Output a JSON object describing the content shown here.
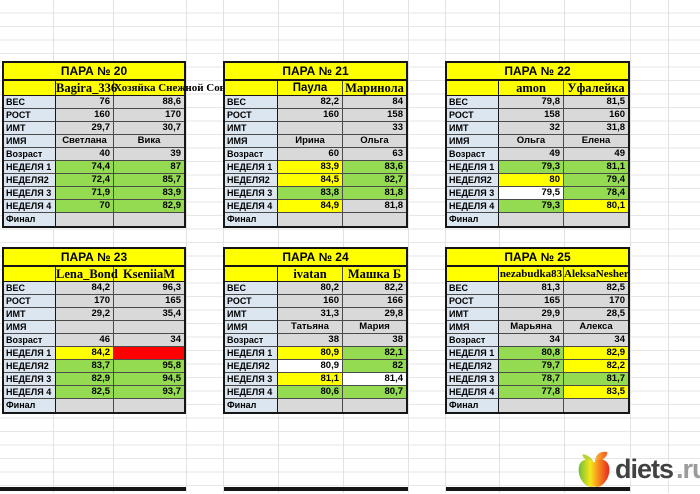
{
  "colors": {
    "yellow": "#FFFF00",
    "green": "#94DB52",
    "red": "#FF0000",
    "gray": "#D9D9D9",
    "label_blue": "#DCE6F1",
    "white": "#FFFFFF"
  },
  "row_labels": [
    "ВЕС",
    "РОСТ",
    "ИМТ",
    "ИМЯ",
    "Возраст",
    "НЕДЕЛЯ 1",
    "НЕДЕЛЯ2",
    "НЕДЕЛЯ 3",
    "НЕДЕЛЯ 4",
    "Финал"
  ],
  "tables": [
    {
      "title": "ПАРА № 20",
      "names": [
        {
          "text": "Bagira_336"
        },
        {
          "text": "Хозяйка Снежной Совы"
        }
      ],
      "rows": [
        {
          "cells": [
            "76",
            "88,6"
          ],
          "fills": [
            "gray",
            "gray"
          ]
        },
        {
          "cells": [
            "160",
            "170"
          ],
          "fills": [
            "gray",
            "gray"
          ]
        },
        {
          "cells": [
            "29,7",
            "30,7"
          ],
          "fills": [
            "gray",
            "gray"
          ]
        },
        {
          "cells": [
            "Светлана",
            "Вика"
          ],
          "fills": [
            "gray",
            "gray"
          ]
        },
        {
          "cells": [
            "40",
            "39"
          ],
          "fills": [
            "gray",
            "gray"
          ]
        },
        {
          "cells": [
            "74,4",
            "87"
          ],
          "fills": [
            "green",
            "green"
          ]
        },
        {
          "cells": [
            "72,4",
            "85,7"
          ],
          "fills": [
            "green",
            "green"
          ]
        },
        {
          "cells": [
            "71,9",
            "83,9"
          ],
          "fills": [
            "green",
            "green"
          ]
        },
        {
          "cells": [
            "70",
            "82,9"
          ],
          "fills": [
            "green",
            "green"
          ]
        },
        {
          "cells": [
            "",
            ""
          ],
          "fills": [
            "gray",
            "gray"
          ]
        }
      ]
    },
    {
      "title": "ПАРА № 21",
      "names": [
        {
          "text": "Паула"
        },
        {
          "text": "Маринола"
        }
      ],
      "rows": [
        {
          "cells": [
            "82,2",
            "84"
          ],
          "fills": [
            "gray",
            "gray"
          ]
        },
        {
          "cells": [
            "160",
            "158"
          ],
          "fills": [
            "gray",
            "gray"
          ]
        },
        {
          "cells": [
            "",
            "33"
          ],
          "fills": [
            "gray",
            "gray"
          ]
        },
        {
          "cells": [
            "Ирина",
            "Ольга"
          ],
          "fills": [
            "gray",
            "gray"
          ]
        },
        {
          "cells": [
            "60",
            "63"
          ],
          "fills": [
            "gray",
            "gray"
          ]
        },
        {
          "cells": [
            "83,9",
            "83,6"
          ],
          "fills": [
            "yellow",
            "green"
          ]
        },
        {
          "cells": [
            "84,5",
            "82,7"
          ],
          "fills": [
            "yellow",
            "green"
          ]
        },
        {
          "cells": [
            "83,8",
            "81,8"
          ],
          "fills": [
            "green",
            "green"
          ]
        },
        {
          "cells": [
            "84,9",
            "81,8"
          ],
          "fills": [
            "yellow",
            "gray"
          ]
        },
        {
          "cells": [
            "",
            ""
          ],
          "fills": [
            "gray",
            "gray"
          ]
        }
      ]
    },
    {
      "title": "ПАРА № 22",
      "names": [
        {
          "text": "amon"
        },
        {
          "text": "Уфалейка"
        }
      ],
      "rows": [
        {
          "cells": [
            "79,8",
            "81,5"
          ],
          "fills": [
            "gray",
            "gray"
          ]
        },
        {
          "cells": [
            "158",
            "160"
          ],
          "fills": [
            "gray",
            "gray"
          ]
        },
        {
          "cells": [
            "32",
            "31,8"
          ],
          "fills": [
            "gray",
            "gray"
          ]
        },
        {
          "cells": [
            "Ольга",
            "Елена"
          ],
          "fills": [
            "gray",
            "gray"
          ]
        },
        {
          "cells": [
            "49",
            "49"
          ],
          "fills": [
            "gray",
            "gray"
          ]
        },
        {
          "cells": [
            "79,3",
            "81,1"
          ],
          "fills": [
            "green",
            "green"
          ]
        },
        {
          "cells": [
            "80",
            "79,4"
          ],
          "fills": [
            "yellow",
            "green"
          ]
        },
        {
          "cells": [
            "79,5",
            "78,4"
          ],
          "fills": [
            "white",
            "green"
          ]
        },
        {
          "cells": [
            "79,3",
            "80,1"
          ],
          "fills": [
            "green",
            "yellow"
          ]
        },
        {
          "cells": [
            "",
            ""
          ],
          "fills": [
            "gray",
            "gray"
          ]
        }
      ]
    },
    {
      "title": "ПАРА № 23",
      "names": [
        {
          "text": "Lena_Bond"
        },
        {
          "text": "KseniiaM"
        }
      ],
      "rows": [
        {
          "cells": [
            "84,2",
            "96,3"
          ],
          "fills": [
            "gray",
            "gray"
          ]
        },
        {
          "cells": [
            "170",
            "165"
          ],
          "fills": [
            "gray",
            "gray"
          ]
        },
        {
          "cells": [
            "29,2",
            "35,4"
          ],
          "fills": [
            "gray",
            "gray"
          ]
        },
        {
          "cells": [
            "",
            ""
          ],
          "fills": [
            "gray",
            "gray"
          ]
        },
        {
          "cells": [
            "46",
            "34"
          ],
          "fills": [
            "gray",
            "gray"
          ]
        },
        {
          "cells": [
            "84,2",
            ""
          ],
          "fills": [
            "yellow",
            "red"
          ]
        },
        {
          "cells": [
            "83,7",
            "95,8"
          ],
          "fills": [
            "green",
            "green"
          ]
        },
        {
          "cells": [
            "82,9",
            "94,5"
          ],
          "fills": [
            "green",
            "green"
          ]
        },
        {
          "cells": [
            "82,5",
            "93,7"
          ],
          "fills": [
            "green",
            "green"
          ]
        },
        {
          "cells": [
            "",
            ""
          ],
          "fills": [
            "gray",
            "gray"
          ]
        }
      ]
    },
    {
      "title": "ПАРА № 24",
      "names": [
        {
          "text": "ivatan"
        },
        {
          "text": "Машка Б"
        }
      ],
      "rows": [
        {
          "cells": [
            "80,2",
            "82,2"
          ],
          "fills": [
            "gray",
            "gray"
          ]
        },
        {
          "cells": [
            "160",
            "166"
          ],
          "fills": [
            "gray",
            "gray"
          ]
        },
        {
          "cells": [
            "31,3",
            "29,8"
          ],
          "fills": [
            "gray",
            "gray"
          ]
        },
        {
          "cells": [
            "Татьяна",
            "Мария"
          ],
          "fills": [
            "gray",
            "gray"
          ]
        },
        {
          "cells": [
            "38",
            "38"
          ],
          "fills": [
            "gray",
            "gray"
          ]
        },
        {
          "cells": [
            "80,9",
            "82,1"
          ],
          "fills": [
            "yellow",
            "green"
          ]
        },
        {
          "cells": [
            "80,9",
            "82"
          ],
          "fills": [
            "white",
            "green"
          ]
        },
        {
          "cells": [
            "81,1",
            "81,4"
          ],
          "fills": [
            "yellow",
            "white"
          ]
        },
        {
          "cells": [
            "80,6",
            "80,7"
          ],
          "fills": [
            "green",
            "green"
          ]
        },
        {
          "cells": [
            "",
            ""
          ],
          "fills": [
            "gray",
            "gray"
          ]
        }
      ]
    },
    {
      "title": "ПАРА № 25",
      "names": [
        {
          "text": "nezabudka83"
        },
        {
          "text": "AleksaNesher"
        }
      ],
      "rows": [
        {
          "cells": [
            "81,3",
            "82,5"
          ],
          "fills": [
            "gray",
            "gray"
          ]
        },
        {
          "cells": [
            "165",
            "170"
          ],
          "fills": [
            "gray",
            "gray"
          ]
        },
        {
          "cells": [
            "29,9",
            "28,5"
          ],
          "fills": [
            "gray",
            "gray"
          ]
        },
        {
          "cells": [
            "Марьяна",
            "Алекса"
          ],
          "fills": [
            "gray",
            "gray"
          ]
        },
        {
          "cells": [
            "34",
            "34"
          ],
          "fills": [
            "gray",
            "gray"
          ]
        },
        {
          "cells": [
            "80,8",
            "82,9"
          ],
          "fills": [
            "green",
            "yellow"
          ]
        },
        {
          "cells": [
            "79,7",
            "82,2"
          ],
          "fills": [
            "green",
            "yellow"
          ]
        },
        {
          "cells": [
            "78,7",
            "81,7"
          ],
          "fills": [
            "green",
            "green"
          ]
        },
        {
          "cells": [
            "77,8",
            "83,5"
          ],
          "fills": [
            "green",
            "yellow"
          ]
        },
        {
          "cells": [
            "",
            ""
          ],
          "fills": [
            "gray",
            "gray"
          ]
        }
      ]
    }
  ],
  "logo": {
    "brand": "diets",
    "tld": ".ru"
  }
}
